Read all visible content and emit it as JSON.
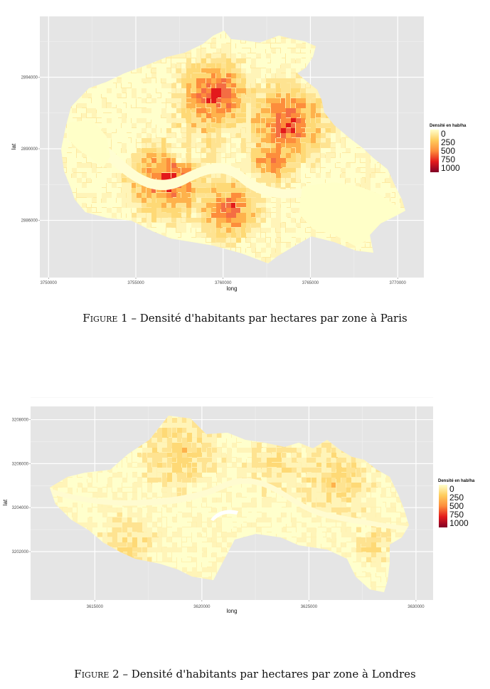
{
  "chart_data": [
    {
      "type": "heatmap",
      "xlabel": "long",
      "ylabel": "lat",
      "xticks": [
        "3750000",
        "3755000",
        "3760000",
        "3765000",
        "3770000"
      ],
      "yticks": [
        "2894000",
        "2890000",
        "2886000"
      ],
      "xlim": [
        3749500,
        3771500
      ],
      "ylim": [
        2882800,
        2897400
      ],
      "legend": {
        "title": "Densité en hab/ha",
        "breaks": [
          "0",
          "250",
          "500",
          "750",
          "1000"
        ],
        "placement": "right"
      },
      "colors": [
        "#ffffcc",
        "#fecc5c",
        "#fd8d3c",
        "#e31a1c",
        "#800026"
      ],
      "grid": true,
      "background": "#e5e5e5",
      "caption_prefix": "Figure 1 –",
      "caption_text": "Densité d'habitants par hectares par zone à Paris"
    },
    {
      "type": "heatmap",
      "xlabel": "long",
      "ylabel": "lat",
      "xticks": [
        "3615000",
        "3620000",
        "3625000",
        "3630000"
      ],
      "yticks": [
        "3208000",
        "3206000",
        "3204000",
        "3202000"
      ],
      "xlim": [
        3612000,
        3630800
      ],
      "ylim": [
        3199800,
        3208600
      ],
      "legend": {
        "title": "Densité en hab/ha",
        "breaks": [
          "0",
          "250",
          "500",
          "750",
          "1000"
        ],
        "placement": "right"
      },
      "colors": [
        "#ffffcc",
        "#fecc5c",
        "#fd8d3c",
        "#e31a1c",
        "#800026"
      ],
      "grid": true,
      "background": "#e5e5e5",
      "caption_prefix": "Figure 2 –",
      "caption_text": "Densité d'habitants par hectares par zone à Londres"
    }
  ]
}
